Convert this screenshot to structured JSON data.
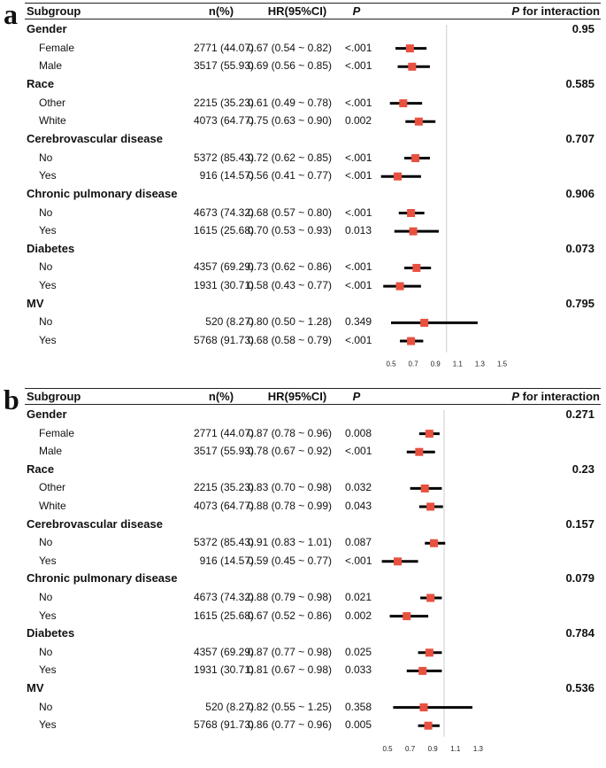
{
  "chart_data": {
    "type": "forest",
    "panels": [
      {
        "label": "a",
        "headers": {
          "subgroup": "Subgroup",
          "n": "n(%)",
          "hr": "HR(95%CI)",
          "p": "P",
          "pint": "P for interaction"
        },
        "ref_line": 1.0,
        "x_ticks": [
          "0.5",
          "0.7",
          "0.9",
          "1.1",
          "1.3",
          "1.5"
        ],
        "x_range": [
          0.5,
          1.5
        ],
        "groups": [
          {
            "name": "Gender",
            "p_interaction": "0.95",
            "rows": [
              {
                "label": "Female",
                "n": "2771 (44.07)",
                "hr_text": "0.67 (0.54 ~ 0.82)",
                "p": "<.001",
                "hr": 0.67,
                "lo": 0.54,
                "hi": 0.82
              },
              {
                "label": "Male",
                "n": "3517 (55.93)",
                "hr_text": "0.69 (0.56 ~ 0.85)",
                "p": "<.001",
                "hr": 0.69,
                "lo": 0.56,
                "hi": 0.85
              }
            ]
          },
          {
            "name": "Race",
            "p_interaction": "0.585",
            "rows": [
              {
                "label": "Other",
                "n": "2215 (35.23)",
                "hr_text": "0.61 (0.49 ~ 0.78)",
                "p": "<.001",
                "hr": 0.61,
                "lo": 0.49,
                "hi": 0.78
              },
              {
                "label": "White",
                "n": "4073 (64.77)",
                "hr_text": "0.75 (0.63 ~ 0.90)",
                "p": "0.002",
                "hr": 0.75,
                "lo": 0.63,
                "hi": 0.9
              }
            ]
          },
          {
            "name": "Cerebrovascular disease",
            "p_interaction": "0.707",
            "rows": [
              {
                "label": "No",
                "n": "5372 (85.43)",
                "hr_text": "0.72 (0.62 ~ 0.85)",
                "p": "<.001",
                "hr": 0.72,
                "lo": 0.62,
                "hi": 0.85
              },
              {
                "label": "Yes",
                "n": "916 (14.57)",
                "hr_text": "0.56 (0.41 ~ 0.77)",
                "p": "<.001",
                "hr": 0.56,
                "lo": 0.41,
                "hi": 0.77
              }
            ]
          },
          {
            "name": "Chronic pulmonary disease",
            "p_interaction": "0.906",
            "rows": [
              {
                "label": "No",
                "n": "4673 (74.32)",
                "hr_text": "0.68 (0.57 ~ 0.80)",
                "p": "<.001",
                "hr": 0.68,
                "lo": 0.57,
                "hi": 0.8
              },
              {
                "label": "Yes",
                "n": "1615 (25.68)",
                "hr_text": "0.70 (0.53 ~ 0.93)",
                "p": "0.013",
                "hr": 0.7,
                "lo": 0.53,
                "hi": 0.93
              }
            ]
          },
          {
            "name": "Diabetes",
            "p_interaction": "0.073",
            "rows": [
              {
                "label": "No",
                "n": "4357 (69.29)",
                "hr_text": "0.73 (0.62 ~ 0.86)",
                "p": "<.001",
                "hr": 0.73,
                "lo": 0.62,
                "hi": 0.86
              },
              {
                "label": "Yes",
                "n": "1931 (30.71)",
                "hr_text": "0.58 (0.43 ~ 0.77)",
                "p": "<.001",
                "hr": 0.58,
                "lo": 0.43,
                "hi": 0.77
              }
            ]
          },
          {
            "name": "MV",
            "p_interaction": "0.795",
            "rows": [
              {
                "label": "No",
                "n": "520 (8.27)",
                "hr_text": "0.80 (0.50 ~ 1.28)",
                "p": "0.349",
                "hr": 0.8,
                "lo": 0.5,
                "hi": 1.28
              },
              {
                "label": "Yes",
                "n": "5768 (91.73)",
                "hr_text": "0.68 (0.58 ~ 0.79)",
                "p": "<.001",
                "hr": 0.68,
                "lo": 0.58,
                "hi": 0.79
              }
            ]
          }
        ]
      },
      {
        "label": "b",
        "headers": {
          "subgroup": "Subgroup",
          "n": "n(%)",
          "hr": "HR(95%CI)",
          "p": "P",
          "pint": "P for interaction"
        },
        "ref_line": 1.0,
        "x_ticks": [
          "0.5",
          "0.7",
          "0.9",
          "1.1",
          "1.3"
        ],
        "x_range": [
          0.5,
          1.3
        ],
        "groups": [
          {
            "name": "Gender",
            "p_interaction": "0.271",
            "rows": [
              {
                "label": "Female",
                "n": "2771 (44.07)",
                "hr_text": "0.87 (0.78 ~ 0.96)",
                "p": "0.008",
                "hr": 0.87,
                "lo": 0.78,
                "hi": 0.96
              },
              {
                "label": "Male",
                "n": "3517 (55.93)",
                "hr_text": "0.78 (0.67 ~ 0.92)",
                "p": "<.001",
                "hr": 0.78,
                "lo": 0.67,
                "hi": 0.92
              }
            ]
          },
          {
            "name": "Race",
            "p_interaction": "0.23",
            "rows": [
              {
                "label": "Other",
                "n": "2215 (35.23)",
                "hr_text": "0.83 (0.70 ~ 0.98)",
                "p": "0.032",
                "hr": 0.83,
                "lo": 0.7,
                "hi": 0.98
              },
              {
                "label": "White",
                "n": "4073 (64.77)",
                "hr_text": "0.88 (0.78 ~ 0.99)",
                "p": "0.043",
                "hr": 0.88,
                "lo": 0.78,
                "hi": 0.99
              }
            ]
          },
          {
            "name": "Cerebrovascular disease",
            "p_interaction": "0.157",
            "rows": [
              {
                "label": "No",
                "n": "5372 (85.43)",
                "hr_text": "0.91 (0.83 ~ 1.01)",
                "p": "0.087",
                "hr": 0.91,
                "lo": 0.83,
                "hi": 1.01
              },
              {
                "label": "Yes",
                "n": "916 (14.57)",
                "hr_text": "0.59 (0.45 ~ 0.77)",
                "p": "<.001",
                "hr": 0.59,
                "lo": 0.45,
                "hi": 0.77
              }
            ]
          },
          {
            "name": "Chronic pulmonary disease",
            "p_interaction": "0.079",
            "rows": [
              {
                "label": "No",
                "n": "4673 (74.32)",
                "hr_text": "0.88 (0.79 ~ 0.98)",
                "p": "0.021",
                "hr": 0.88,
                "lo": 0.79,
                "hi": 0.98
              },
              {
                "label": "Yes",
                "n": "1615 (25.68)",
                "hr_text": "0.67 (0.52 ~ 0.86)",
                "p": "0.002",
                "hr": 0.67,
                "lo": 0.52,
                "hi": 0.86
              }
            ]
          },
          {
            "name": "Diabetes",
            "p_interaction": "0.784",
            "rows": [
              {
                "label": "No",
                "n": "4357 (69.29)",
                "hr_text": "0.87 (0.77 ~ 0.98)",
                "p": "0.025",
                "hr": 0.87,
                "lo": 0.77,
                "hi": 0.98
              },
              {
                "label": "Yes",
                "n": "1931 (30.71)",
                "hr_text": "0.81 (0.67 ~ 0.98)",
                "p": "0.033",
                "hr": 0.81,
                "lo": 0.67,
                "hi": 0.98
              }
            ]
          },
          {
            "name": "MV",
            "p_interaction": "0.536",
            "rows": [
              {
                "label": "No",
                "n": "520 (8.27)",
                "hr_text": "0.82 (0.55 ~ 1.25)",
                "p": "0.358",
                "hr": 0.82,
                "lo": 0.55,
                "hi": 1.25
              },
              {
                "label": "Yes",
                "n": "5768 (91.73)",
                "hr_text": "0.86 (0.77 ~ 0.96)",
                "p": "0.005",
                "hr": 0.86,
                "lo": 0.77,
                "hi": 0.96
              }
            ]
          }
        ]
      }
    ],
    "colors": {
      "marker": "#e8503f",
      "ci": "#000000",
      "ref": "#bbbbbb"
    }
  }
}
